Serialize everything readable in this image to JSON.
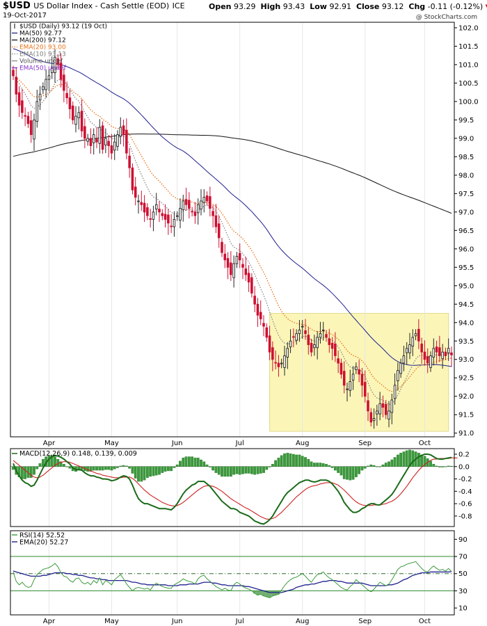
{
  "header": {
    "symbol": "$USD",
    "name": "US Dollar Index - Cash Settle (EOD)",
    "exchange": "ICE",
    "date": "19-Oct-2017",
    "open_label": "Open",
    "open": "93.29",
    "high_label": "High",
    "high": "93.43",
    "low_label": "Low",
    "low": "92.91",
    "close_label": "Close",
    "close": "93.12",
    "chg_label": "Chg",
    "chg": "-0.11 (-0.12%)",
    "credit": "@ StockCharts.com"
  },
  "colors": {
    "up_candle": "#222222",
    "down_candle": "#cc1133",
    "ma50": "#1f1f8f",
    "ma200": "#111111",
    "ema20": "#e8731a",
    "ema10": "#888888",
    "volume": "#888888",
    "ema50": "#8833cc",
    "highlight_fill": "#fbf6b8",
    "highlight_stroke": "#e0d98a",
    "macd_line": "#1a6b1a",
    "signal_line": "#cc2222",
    "histogram": "#3a9a3a",
    "rsi_line": "#3c9a3c",
    "rsi_ema": "#1f1f8f",
    "rsi_band": "#2a8a2a"
  },
  "chart_data": [
    {
      "type": "candlestick",
      "panel": "price",
      "legend": [
        {
          "key": "price",
          "text": "$USD (Daily) 93.12 (19 Oct)",
          "style": "candle"
        },
        {
          "key": "ma50",
          "text": "MA(50) 92.77",
          "style": "line"
        },
        {
          "key": "ma200",
          "text": "MA(200) 97.12",
          "style": "line"
        },
        {
          "key": "ema20",
          "text": "EMA(20) 93.00",
          "style": "dot"
        },
        {
          "key": "ema10",
          "text": "EMA(10) 93.13",
          "style": "dot"
        },
        {
          "key": "volume",
          "text": "Volume undef",
          "style": "line"
        },
        {
          "key": "ema50",
          "text": "EMA(50) undef",
          "style": "line"
        }
      ],
      "x_labels": [
        {
          "label": "Apr",
          "day": 12
        },
        {
          "label": "May",
          "day": 33
        },
        {
          "label": "Jun",
          "day": 55
        },
        {
          "label": "Jul",
          "day": 76
        },
        {
          "label": "Aug",
          "day": 97
        },
        {
          "label": "Sep",
          "day": 118
        },
        {
          "label": "Oct",
          "day": 138
        }
      ],
      "y_ticks": [
        91.0,
        91.5,
        92.0,
        92.5,
        93.0,
        93.5,
        94.0,
        94.5,
        95.0,
        95.5,
        96.0,
        96.5,
        97.0,
        97.5,
        98.0,
        98.5,
        99.0,
        99.5,
        100.0,
        100.5,
        101.0,
        101.5,
        102.0
      ],
      "ylim": [
        90.9,
        102.15
      ],
      "highlight": {
        "x_from": 86,
        "x_to": 146,
        "y_from": 91.05,
        "y_to": 94.25
      },
      "close": [
        100.7,
        100.2,
        99.9,
        99.7,
        99.6,
        99.4,
        99.1,
        99.5,
        100.0,
        100.2,
        100.4,
        100.6,
        100.7,
        100.9,
        101.2,
        101.0,
        100.6,
        100.3,
        100.1,
        99.8,
        99.5,
        99.6,
        99.7,
        99.2,
        99.0,
        99.0,
        98.8,
        99.1,
        98.9,
        99.3,
        98.7,
        99.0,
        98.8,
        98.6,
        98.9,
        99.1,
        99.3,
        99.1,
        98.6,
        98.2,
        97.6,
        97.4,
        97.3,
        97.2,
        97.0,
        96.9,
        96.8,
        97.0,
        97.2,
        97.0,
        96.9,
        96.8,
        96.7,
        96.6,
        96.8,
        96.9,
        97.1,
        97.3,
        97.2,
        97.1,
        97.0,
        96.9,
        97.2,
        97.3,
        97.4,
        97.3,
        97.1,
        96.9,
        96.6,
        96.3,
        95.9,
        95.7,
        95.5,
        95.3,
        95.6,
        95.8,
        95.7,
        95.5,
        95.3,
        95.1,
        94.8,
        94.5,
        94.2,
        94.1,
        93.9,
        93.6,
        93.2,
        93.0,
        92.9,
        92.8,
        92.9,
        93.1,
        93.3,
        93.5,
        93.6,
        93.7,
        93.8,
        93.9,
        93.7,
        93.4,
        93.2,
        93.4,
        93.6,
        93.7,
        93.8,
        93.6,
        93.4,
        93.3,
        93.1,
        92.9,
        92.6,
        92.3,
        92.2,
        92.4,
        92.6,
        92.8,
        92.6,
        92.3,
        92.0,
        91.6,
        91.3,
        91.4,
        91.6,
        91.8,
        91.7,
        91.5,
        91.6,
        91.9,
        92.3,
        92.7,
        92.9,
        93.1,
        93.3,
        93.4,
        93.6,
        93.7,
        93.5,
        93.2,
        93.0,
        92.9,
        93.1,
        93.3,
        93.2,
        93.1,
        93.2,
        93.1,
        93.3,
        93.12
      ]
    },
    {
      "type": "line",
      "panel": "macd",
      "legend_text": "MACD(12,26,9) 0.148, 0.139, 0.009",
      "y_ticks": [
        0.2,
        0.0,
        -0.2,
        -0.4,
        -0.6,
        -0.8
      ],
      "ylim": [
        -0.97,
        0.29
      ],
      "series": [
        {
          "key": "macd",
          "values": [
            0.05,
            -0.07,
            -0.15,
            -0.22,
            -0.26,
            -0.28,
            -0.32,
            -0.3,
            -0.22,
            -0.12,
            -0.02,
            0.06,
            0.12,
            0.16,
            0.18,
            0.17,
            0.15,
            0.12,
            0.08,
            0.04,
            -0.02,
            -0.05,
            -0.05,
            -0.06,
            -0.1,
            -0.13,
            -0.15,
            -0.15,
            -0.17,
            -0.18,
            -0.2,
            -0.2,
            -0.21,
            -0.23,
            -0.22,
            -0.2,
            -0.17,
            -0.15,
            -0.16,
            -0.2,
            -0.3,
            -0.42,
            -0.52,
            -0.57,
            -0.6,
            -0.6,
            -0.62,
            -0.64,
            -0.66,
            -0.68,
            -0.68,
            -0.68,
            -0.69,
            -0.7,
            -0.66,
            -0.6,
            -0.52,
            -0.44,
            -0.38,
            -0.34,
            -0.3,
            -0.28,
            -0.24,
            -0.24,
            -0.24,
            -0.28,
            -0.32,
            -0.38,
            -0.44,
            -0.5,
            -0.56,
            -0.6,
            -0.64,
            -0.68,
            -0.68,
            -0.7,
            -0.74,
            -0.76,
            -0.78,
            -0.8,
            -0.84,
            -0.88,
            -0.9,
            -0.92,
            -0.93,
            -0.9,
            -0.86,
            -0.8,
            -0.72,
            -0.64,
            -0.56,
            -0.48,
            -0.42,
            -0.38,
            -0.34,
            -0.3,
            -0.26,
            -0.24,
            -0.22,
            -0.22,
            -0.24,
            -0.25,
            -0.24,
            -0.22,
            -0.22,
            -0.22,
            -0.24,
            -0.28,
            -0.34,
            -0.4,
            -0.48,
            -0.58,
            -0.64,
            -0.7,
            -0.74,
            -0.74,
            -0.72,
            -0.68,
            -0.66,
            -0.62,
            -0.6,
            -0.6,
            -0.62,
            -0.62,
            -0.58,
            -0.54,
            -0.5,
            -0.45,
            -0.38,
            -0.3,
            -0.22,
            -0.14,
            -0.06,
            0.02,
            0.08,
            0.12,
            0.16,
            0.18,
            0.2,
            0.2,
            0.19,
            0.16,
            0.13,
            0.12,
            0.12,
            0.13,
            0.14,
            0.148
          ]
        },
        {
          "key": "signal",
          "values": [
            0.1,
            0.06,
            0.02,
            -0.02,
            -0.06,
            -0.1,
            -0.14,
            -0.17,
            -0.18,
            -0.17,
            -0.14,
            -0.1,
            -0.06,
            -0.02,
            0.02,
            0.05,
            0.07,
            0.08,
            0.08,
            0.07,
            0.05,
            0.03,
            0.01,
            -0.01,
            -0.03,
            -0.05,
            -0.07,
            -0.09,
            -0.11,
            -0.12,
            -0.14,
            -0.15,
            -0.16,
            -0.17,
            -0.18,
            -0.18,
            -0.18,
            -0.17,
            -0.17,
            -0.17,
            -0.19,
            -0.23,
            -0.28,
            -0.33,
            -0.38,
            -0.42,
            -0.46,
            -0.49,
            -0.52,
            -0.55,
            -0.58,
            -0.6,
            -0.62,
            -0.63,
            -0.64,
            -0.63,
            -0.61,
            -0.58,
            -0.54,
            -0.5,
            -0.46,
            -0.42,
            -0.38,
            -0.35,
            -0.32,
            -0.31,
            -0.31,
            -0.32,
            -0.34,
            -0.37,
            -0.4,
            -0.44,
            -0.48,
            -0.52,
            -0.55,
            -0.58,
            -0.61,
            -0.64,
            -0.67,
            -0.69,
            -0.72,
            -0.75,
            -0.78,
            -0.81,
            -0.83,
            -0.85,
            -0.85,
            -0.84,
            -0.82,
            -0.78,
            -0.74,
            -0.69,
            -0.64,
            -0.59,
            -0.54,
            -0.49,
            -0.45,
            -0.41,
            -0.37,
            -0.34,
            -0.32,
            -0.31,
            -0.3,
            -0.28,
            -0.27,
            -0.26,
            -0.26,
            -0.26,
            -0.28,
            -0.3,
            -0.34,
            -0.38,
            -0.43,
            -0.48,
            -0.53,
            -0.57,
            -0.6,
            -0.62,
            -0.63,
            -0.63,
            -0.63,
            -0.62,
            -0.62,
            -0.62,
            -0.61,
            -0.6,
            -0.58,
            -0.56,
            -0.53,
            -0.49,
            -0.44,
            -0.38,
            -0.32,
            -0.25,
            -0.18,
            -0.12,
            -0.06,
            -0.01,
            0.03,
            0.07,
            0.1,
            0.12,
            0.12,
            0.13,
            0.13,
            0.13,
            0.13,
            0.14,
            0.14,
            0.139
          ]
        }
      ]
    },
    {
      "type": "line",
      "panel": "rsi",
      "legend": [
        {
          "key": "rsi",
          "text": "RSI(14) 52.52"
        },
        {
          "key": "rsi_ema",
          "text": "EMA(20) 52.27"
        }
      ],
      "y_ticks": [
        90,
        70,
        50,
        30,
        10
      ],
      "ylim": [
        2,
        100
      ],
      "bands": [
        70,
        30
      ],
      "midline": 50,
      "series": [
        {
          "key": "rsi",
          "values": [
            52,
            41,
            37,
            40,
            36,
            34,
            35,
            43,
            49,
            52,
            55,
            56,
            57,
            59,
            62,
            58,
            51,
            47,
            46,
            42,
            40,
            44,
            45,
            40,
            38,
            40,
            37,
            42,
            39,
            45,
            37,
            42,
            40,
            37,
            43,
            46,
            49,
            44,
            38,
            34,
            30,
            33,
            34,
            33,
            32,
            33,
            31,
            36,
            39,
            37,
            35,
            34,
            33,
            33,
            37,
            39,
            41,
            44,
            42,
            41,
            40,
            38,
            44,
            47,
            48,
            44,
            41,
            38,
            35,
            33,
            31,
            33,
            31,
            30,
            37,
            40,
            38,
            35,
            33,
            32,
            30,
            27,
            25,
            26,
            24,
            23,
            22,
            24,
            25,
            26,
            31,
            36,
            40,
            43,
            45,
            46,
            48,
            50,
            47,
            43,
            40,
            45,
            49,
            50,
            52,
            48,
            45,
            43,
            40,
            37,
            34,
            32,
            31,
            35,
            38,
            43,
            40,
            37,
            34,
            31,
            29,
            32,
            36,
            40,
            38,
            36,
            38,
            43,
            49,
            55,
            58,
            59,
            61,
            62,
            63,
            64,
            60,
            56,
            53,
            52,
            56,
            59,
            56,
            54,
            55,
            53,
            56,
            52.52
          ]
        },
        {
          "key": "rsi_ema",
          "values": [
            53,
            52,
            51,
            50,
            49,
            48,
            47,
            47,
            47,
            47,
            48,
            48,
            49,
            50,
            51,
            51,
            51,
            51,
            50,
            50,
            49,
            49,
            48,
            48,
            47,
            46,
            45,
            45,
            44,
            44,
            43,
            43,
            42,
            42,
            42,
            42,
            42,
            42,
            42,
            41,
            40,
            40,
            39,
            38,
            38,
            37,
            37,
            37,
            37,
            37,
            37,
            37,
            36,
            36,
            36,
            36,
            37,
            37,
            37,
            38,
            38,
            38,
            38,
            39,
            40,
            40,
            40,
            39,
            39,
            38,
            37,
            37,
            36,
            36,
            36,
            36,
            36,
            36,
            35,
            35,
            34,
            33,
            32,
            31,
            30,
            29,
            28,
            28,
            28,
            28,
            28,
            29,
            30,
            31,
            32,
            34,
            35,
            36,
            37,
            37,
            38,
            38,
            39,
            40,
            41,
            41,
            42,
            42,
            42,
            41,
            41,
            40,
            39,
            39,
            39,
            39,
            39,
            39,
            38,
            37,
            36,
            36,
            36,
            36,
            36,
            36,
            37,
            37,
            38,
            39,
            41,
            43,
            44,
            46,
            48,
            49,
            50,
            51,
            51,
            51,
            52,
            52,
            52,
            52,
            52,
            52,
            52,
            52.27
          ]
        }
      ]
    }
  ]
}
